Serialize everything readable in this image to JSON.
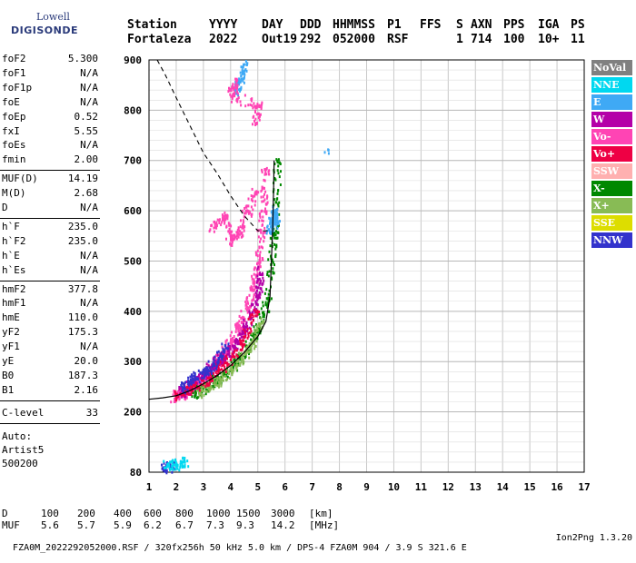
{
  "logo": {
    "line1": "Lowell",
    "line2": "DIGISONDE"
  },
  "header": {
    "labels": [
      "Station",
      "YYYY",
      "DAY",
      "DDD",
      "HHMMSS",
      "P1",
      "FFS",
      "S",
      "AXN",
      "PPS",
      "IGA",
      "PS"
    ],
    "values": [
      "Fortaleza",
      "2022",
      "Out19",
      "292",
      "052000",
      "RSF",
      "",
      "1",
      "714",
      "100",
      "10+",
      "11"
    ]
  },
  "params": [
    {
      "name": "foF2",
      "value": "5.300"
    },
    {
      "name": "foF1",
      "value": "N/A"
    },
    {
      "name": "foF1p",
      "value": "N/A"
    },
    {
      "name": "foE",
      "value": "N/A"
    },
    {
      "name": "foEp",
      "value": "0.52"
    },
    {
      "name": "fxI",
      "value": "5.55"
    },
    {
      "name": "foEs",
      "value": "N/A"
    },
    {
      "name": "fmin",
      "value": "2.00"
    },
    {
      "name": "MUF(D)",
      "value": "14.19"
    },
    {
      "name": "M(D)",
      "value": "2.68"
    },
    {
      "name": "D",
      "value": "N/A"
    },
    {
      "name": "h`F",
      "value": "235.0"
    },
    {
      "name": "h`F2",
      "value": "235.0"
    },
    {
      "name": "h`E",
      "value": "N/A"
    },
    {
      "name": "h`Es",
      "value": "N/A"
    },
    {
      "name": "hmF2",
      "value": "377.8"
    },
    {
      "name": "hmF1",
      "value": "N/A"
    },
    {
      "name": "hmE",
      "value": "110.0"
    },
    {
      "name": "yF2",
      "value": "175.3"
    },
    {
      "name": "yF1",
      "value": "N/A"
    },
    {
      "name": "yE",
      "value": "20.0"
    },
    {
      "name": "B0",
      "value": "187.3"
    },
    {
      "name": "B1",
      "value": "2.16"
    },
    {
      "name": "C-level",
      "value": "33"
    }
  ],
  "autoscale": {
    "line1": "Auto:",
    "line2": "Artist5",
    "line3": "500200"
  },
  "legend": [
    {
      "label": "NoVal",
      "color": "#808080"
    },
    {
      "label": "NNE",
      "color": "#00d8f0"
    },
    {
      "label": "E",
      "color": "#3fa9f5"
    },
    {
      "label": "W",
      "color": "#b400a8"
    },
    {
      "label": "Vo-",
      "color": "#ff44b4"
    },
    {
      "label": "Vo+",
      "color": "#ee0044"
    },
    {
      "label": "SSW",
      "color": "#ffb0b0"
    },
    {
      "label": "X-",
      "color": "#008800"
    },
    {
      "label": "X+",
      "color": "#88bb55"
    },
    {
      "label": "SSE",
      "color": "#dddd00"
    },
    {
      "label": "NNW",
      "color": "#3333cc"
    }
  ],
  "footer": {
    "d_label": "D",
    "d_values": [
      "100",
      "200",
      "400",
      "600",
      "800",
      "1000",
      "1500",
      "3000",
      "[km]"
    ],
    "muf_label": "MUF",
    "muf_values": [
      "5.6",
      "5.7",
      "5.9",
      "6.2",
      "6.7",
      "7.3",
      "9.3",
      "14.2",
      "[MHz]"
    ],
    "file_info": "FZA0M_2022292052000.RSF / 320fx256h 50 kHz 5.0 km / DPS-4 FZA0M 904 / 3.9 S 321.6 E",
    "version": "Ion2Png 1.3.20"
  },
  "chart_data": {
    "type": "scatter",
    "xlabel": "",
    "ylabel": "",
    "xlim": [
      1,
      17
    ],
    "ylim": [
      80,
      900
    ],
    "x_ticks": [
      1,
      2,
      3,
      4,
      5,
      6,
      7,
      8,
      9,
      10,
      11,
      12,
      13,
      14,
      15,
      16,
      17
    ],
    "y_ticks": [
      80,
      200,
      300,
      400,
      500,
      600,
      700,
      800,
      900
    ],
    "grid": true,
    "trace_bands": [
      {
        "name": "Vo-",
        "color": "#ff44b4",
        "points": [
          [
            1.9,
            232
          ],
          [
            2.2,
            238
          ],
          [
            2.5,
            248
          ],
          [
            2.8,
            262
          ],
          [
            3.1,
            278
          ],
          [
            3.4,
            296
          ],
          [
            3.7,
            318
          ],
          [
            4.0,
            342
          ],
          [
            4.3,
            372
          ],
          [
            4.6,
            410
          ],
          [
            4.8,
            450
          ],
          [
            5.0,
            500
          ],
          [
            5.1,
            560
          ],
          [
            5.2,
            620
          ],
          [
            5.25,
            680
          ]
        ]
      },
      {
        "name": "W",
        "color": "#b400a8",
        "points": [
          [
            2.1,
            236
          ],
          [
            2.4,
            250
          ],
          [
            2.7,
            262
          ],
          [
            3.0,
            276
          ],
          [
            3.3,
            292
          ],
          [
            3.6,
            306
          ],
          [
            3.9,
            322
          ],
          [
            4.2,
            340
          ],
          [
            4.5,
            366
          ],
          [
            4.8,
            400
          ],
          [
            5.0,
            440
          ],
          [
            5.1,
            480
          ]
        ]
      },
      {
        "name": "X-",
        "color": "#008800",
        "points": [
          [
            2.6,
            238
          ],
          [
            3.0,
            248
          ],
          [
            3.4,
            262
          ],
          [
            3.8,
            280
          ],
          [
            4.2,
            302
          ],
          [
            4.6,
            330
          ],
          [
            5.0,
            368
          ],
          [
            5.3,
            420
          ],
          [
            5.5,
            500
          ],
          [
            5.6,
            560
          ],
          [
            5.65,
            620
          ],
          [
            5.7,
            700
          ]
        ]
      },
      {
        "name": "X+",
        "color": "#88bb55",
        "points": [
          [
            2.8,
            240
          ],
          [
            3.2,
            252
          ],
          [
            3.6,
            266
          ],
          [
            4.0,
            286
          ],
          [
            4.4,
            310
          ],
          [
            4.8,
            340
          ],
          [
            5.1,
            380
          ]
        ]
      },
      {
        "name": "E",
        "color": "#3fa9f5",
        "points": [
          [
            5.4,
            560
          ],
          [
            5.5,
            580
          ],
          [
            5.6,
            600
          ],
          [
            5.65,
            575
          ],
          [
            4.2,
            840
          ],
          [
            4.3,
            860
          ],
          [
            4.5,
            890
          ],
          [
            7.5,
            720
          ]
        ]
      },
      {
        "name": "Vo+",
        "color": "#ee0044",
        "points": [
          [
            2.0,
            234
          ],
          [
            2.6,
            250
          ],
          [
            3.2,
            270
          ],
          [
            3.8,
            296
          ],
          [
            4.4,
            340
          ],
          [
            4.9,
            400
          ]
        ]
      },
      {
        "name": "NNW",
        "color": "#3333cc",
        "points": [
          [
            2.2,
            250
          ],
          [
            2.6,
            270
          ],
          [
            3.0,
            280
          ],
          [
            3.4,
            300
          ],
          [
            3.8,
            330
          ],
          [
            1.5,
            90
          ],
          [
            1.8,
            92
          ]
        ]
      },
      {
        "name": "NNE",
        "color": "#00d8f0",
        "points": [
          [
            1.6,
            95
          ],
          [
            2.0,
            98
          ],
          [
            2.3,
            102
          ]
        ]
      },
      {
        "name": "Vo-",
        "color": "#ff44b4",
        "points": [
          [
            3.3,
            570
          ],
          [
            3.8,
            590
          ],
          [
            4.0,
            540
          ],
          [
            4.3,
            560
          ],
          [
            4.6,
            600
          ],
          [
            4.9,
            640
          ],
          [
            4.9,
            780
          ],
          [
            5.0,
            810
          ],
          [
            4.0,
            830
          ],
          [
            4.2,
            860
          ]
        ]
      }
    ],
    "profile_curve": [
      [
        1.0,
        225
      ],
      [
        1.5,
        228
      ],
      [
        2.0,
        232
      ],
      [
        2.5,
        242
      ],
      [
        3.0,
        256
      ],
      [
        3.5,
        272
      ],
      [
        4.0,
        292
      ],
      [
        4.5,
        318
      ],
      [
        5.0,
        350
      ],
      [
        5.3,
        380
      ],
      [
        5.45,
        430
      ],
      [
        5.5,
        500
      ],
      [
        5.55,
        570
      ],
      [
        5.58,
        640
      ],
      [
        5.6,
        700
      ]
    ],
    "muf_curve": [
      [
        1.3,
        900
      ],
      [
        1.6,
        870
      ],
      [
        2.0,
        825
      ],
      [
        2.5,
        770
      ],
      [
        3.0,
        715
      ],
      [
        3.5,
        675
      ],
      [
        4.0,
        630
      ],
      [
        4.5,
        590
      ],
      [
        5.0,
        560
      ],
      [
        5.4,
        560
      ]
    ]
  }
}
